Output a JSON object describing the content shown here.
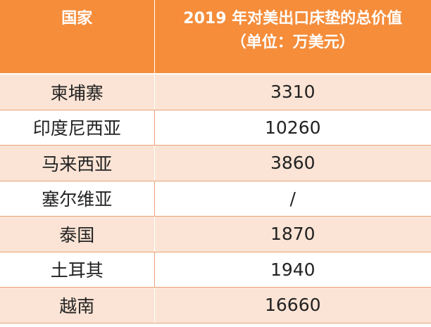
{
  "table": {
    "header": {
      "country": "国家",
      "value_line1": "2019 年对美出口床垫的总价值",
      "value_line2": "（单位：万美元）"
    },
    "rows": [
      {
        "country": "柬埔寨",
        "value": "3310"
      },
      {
        "country": "印度尼西亚",
        "value": "10260"
      },
      {
        "country": "马来西亚",
        "value": "3860"
      },
      {
        "country": "塞尔维亚",
        "value": "/"
      },
      {
        "country": "泰国",
        "value": "1870"
      },
      {
        "country": "土耳其",
        "value": "1940"
      },
      {
        "country": "越南",
        "value": "16660"
      }
    ]
  },
  "colors": {
    "header_bg": "#f58d3b",
    "odd_row_bg": "#fbe4d5",
    "even_row_bg": "#ffffff"
  }
}
